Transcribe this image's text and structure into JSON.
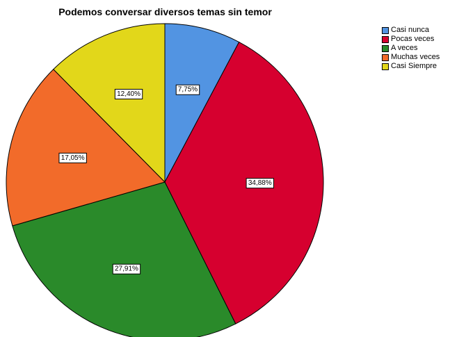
{
  "chart_data": {
    "type": "pie",
    "title": "Podemos conversar diversos temas sin temor",
    "categories": [
      "Casi nunca",
      "Pocas veces",
      "A veces",
      "Muchas veces",
      "Casi Siempre"
    ],
    "values": [
      7.75,
      34.88,
      27.91,
      17.05,
      12.4
    ],
    "data_labels": [
      "7,75%",
      "34,88%",
      "27,91%",
      "17,05%",
      "12,40%"
    ],
    "colors": [
      "#5294e2",
      "#d6002f",
      "#2a8a2a",
      "#f26b2a",
      "#e2d71a"
    ],
    "start_angle_deg": 0,
    "direction": "clockwise",
    "legend_position": "top-right"
  }
}
